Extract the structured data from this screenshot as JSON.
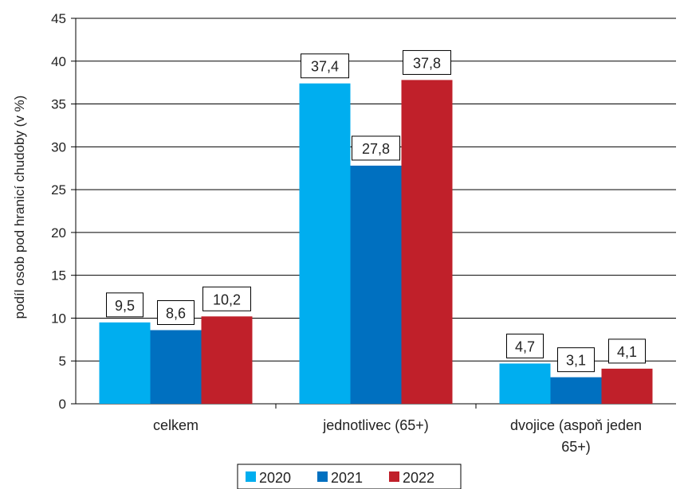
{
  "chart_data": {
    "type": "bar",
    "ylabel": "podíl osob pod hranicí chudoby (v %)",
    "ylim": [
      0,
      45
    ],
    "yticks": [
      0,
      5,
      10,
      15,
      20,
      25,
      30,
      35,
      40,
      45
    ],
    "categories": [
      [
        "celkem"
      ],
      [
        "jednotlivec (65+)"
      ],
      [
        "dvojice (aspoň jeden",
        "65+)"
      ]
    ],
    "series": [
      {
        "name": "2020",
        "color": "#00aeef",
        "values": [
          9.5,
          37.4,
          4.7
        ],
        "labels": [
          "9,5",
          "37,4",
          "4,7"
        ]
      },
      {
        "name": "2021",
        "color": "#0070c0",
        "values": [
          8.6,
          27.8,
          3.1
        ],
        "labels": [
          "8,6",
          "27,8",
          "3,1"
        ]
      },
      {
        "name": "2022",
        "color": "#c0202a",
        "values": [
          10.2,
          37.8,
          4.1
        ],
        "labels": [
          "10,2",
          "37,8",
          "4,1"
        ]
      }
    ],
    "grid": true,
    "legend": "bottom"
  }
}
